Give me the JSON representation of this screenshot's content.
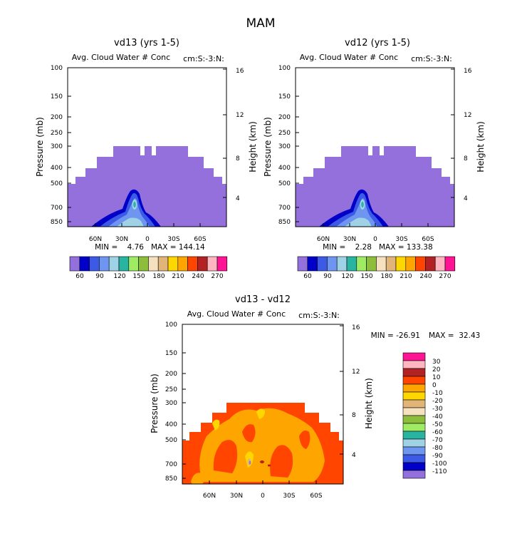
{
  "figure": {
    "title": "MAM"
  },
  "chart_data": [
    {
      "type": "heatmap",
      "title": "vd13 (yrs 1-5)",
      "subtitle": "Avg. Cloud Water # Conc",
      "subtitle_units": "cm:S:-3:N:",
      "ylabel": "Pressure (mb)",
      "ylabel_right": "Height (km)",
      "xticks": [
        "60N",
        "30N",
        "0",
        "30S",
        "60S"
      ],
      "yticks": [
        "100",
        "150",
        "200",
        "250",
        "300",
        "400",
        "500",
        "700",
        "850"
      ],
      "yticks_right": [
        "16",
        "12",
        "8",
        "4"
      ],
      "stats": {
        "min": "MIN =    4.76",
        "max": "MAX = 144.14"
      },
      "colorbar": {
        "labels": [
          "60",
          "90",
          "120",
          "150",
          "180",
          "210",
          "240",
          "270"
        ]
      }
    },
    {
      "type": "heatmap",
      "title": "vd12 (yrs 1-5)",
      "subtitle": "Avg. Cloud Water # Conc",
      "subtitle_units": "cm:S:-3:N:",
      "ylabel": "Pressure (mb)",
      "ylabel_right": "Height (km)",
      "xticks": [
        "60N",
        "30N",
        "0",
        "30S",
        "60S"
      ],
      "yticks": [
        "100",
        "150",
        "200",
        "250",
        "300",
        "400",
        "500",
        "700",
        "850"
      ],
      "yticks_right": [
        "16",
        "12",
        "8",
        "4"
      ],
      "stats": {
        "min": "MIN =    2.28",
        "max": "MAX = 133.38"
      },
      "colorbar": {
        "labels": [
          "60",
          "90",
          "120",
          "150",
          "180",
          "210",
          "240",
          "270"
        ]
      }
    },
    {
      "type": "heatmap",
      "title": "vd13 - vd12",
      "subtitle": "Avg. Cloud Water # Conc",
      "subtitle_units": "cm:S:-3:N:",
      "ylabel": "Pressure (mb)",
      "ylabel_right": "Height (km)",
      "xticks": [
        "60N",
        "30N",
        "0",
        "30S",
        "60S"
      ],
      "yticks": [
        "100",
        "150",
        "200",
        "250",
        "300",
        "400",
        "500",
        "700",
        "850"
      ],
      "yticks_right": [
        "16",
        "12",
        "8",
        "4"
      ],
      "stats": {
        "min": "MIN = -26.91",
        "max": "MAX =  32.43"
      },
      "colorbar": {
        "labels": [
          "30",
          "20",
          "10",
          "0",
          "-10",
          "-20",
          "-30",
          "-40",
          "-50",
          "-60",
          "-70",
          "-80",
          "-90",
          "-100",
          "-110"
        ]
      }
    }
  ],
  "palettes": {
    "abs": [
      "#9370db",
      "#0000c8",
      "#3c5ae6",
      "#6e96f0",
      "#a0d2e6",
      "#28b4a0",
      "#a0eb64",
      "#8cbe3c",
      "#f5e1be",
      "#e1b478",
      "#ffd700",
      "#ffa500",
      "#ff4500",
      "#b22222",
      "#ffb6c1",
      "#ff1493"
    ],
    "diff": [
      "#ff1493",
      "#ffb6c1",
      "#b22222",
      "#ff4500",
      "#ffa500",
      "#ffd700",
      "#e1b478",
      "#f5e1be",
      "#8cbe3c",
      "#a0eb64",
      "#28b4a0",
      "#a0d2e6",
      "#6e96f0",
      "#3c5ae6",
      "#0000c8",
      "#9370db"
    ]
  }
}
